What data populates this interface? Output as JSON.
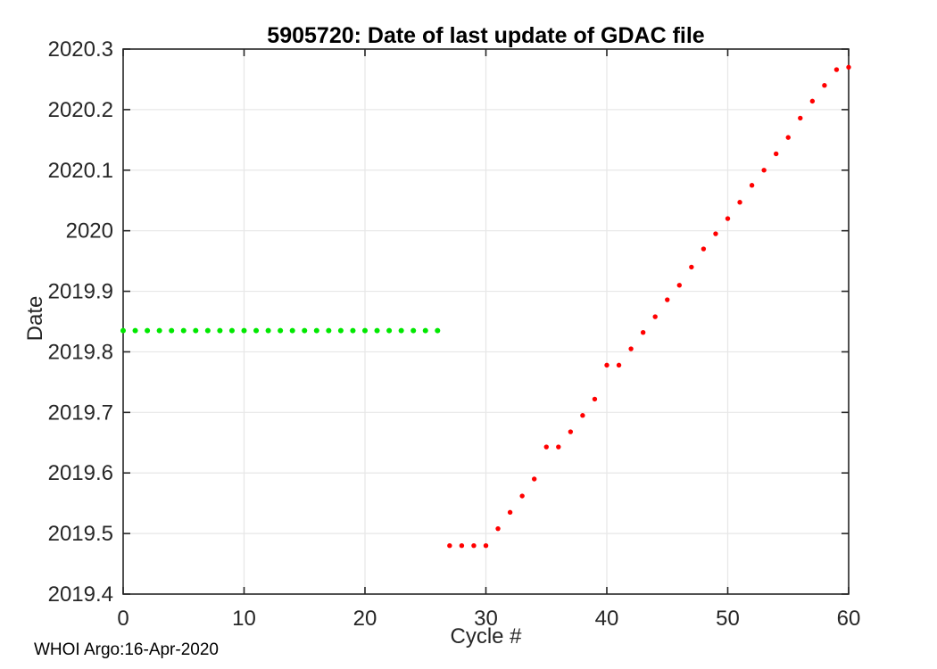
{
  "chart_data": {
    "type": "scatter",
    "title": "5905720: Date of last update of GDAC file",
    "xlabel": "Cycle #",
    "ylabel": "Date",
    "annotation": "WHOI Argo:16-Apr-2020",
    "xlim": [
      0,
      60
    ],
    "ylim": [
      2019.4,
      2020.3
    ],
    "grid": true,
    "legend": "none",
    "box": true,
    "tick_direction": "in",
    "xticks": [
      {
        "v": 0,
        "label": "0"
      },
      {
        "v": 10,
        "label": "10"
      },
      {
        "v": 20,
        "label": "20"
      },
      {
        "v": 30,
        "label": "30"
      },
      {
        "v": 40,
        "label": "40"
      },
      {
        "v": 50,
        "label": "50"
      },
      {
        "v": 60,
        "label": "60"
      }
    ],
    "yticks": [
      {
        "v": 2019.4,
        "label": "2019.4"
      },
      {
        "v": 2019.5,
        "label": "2019.5"
      },
      {
        "v": 2019.6,
        "label": "2019.6"
      },
      {
        "v": 2019.7,
        "label": "2019.7"
      },
      {
        "v": 2019.8,
        "label": "2019.8"
      },
      {
        "v": 2019.9,
        "label": "2019.9"
      },
      {
        "v": 2020.0,
        "label": "2020"
      },
      {
        "v": 2020.1,
        "label": "2020.1"
      },
      {
        "v": 2020.2,
        "label": "2020.2"
      },
      {
        "v": 2020.3,
        "label": "2020.3"
      }
    ],
    "series": [
      {
        "name": "green-dots",
        "color": "#00e800",
        "marker": "dot",
        "marker_size": 6,
        "points": [
          [
            0,
            2019.835
          ],
          [
            1,
            2019.835
          ],
          [
            2,
            2019.835
          ],
          [
            3,
            2019.835
          ],
          [
            4,
            2019.835
          ],
          [
            5,
            2019.835
          ],
          [
            6,
            2019.835
          ],
          [
            7,
            2019.835
          ],
          [
            8,
            2019.835
          ],
          [
            9,
            2019.835
          ],
          [
            10,
            2019.835
          ],
          [
            11,
            2019.835
          ],
          [
            12,
            2019.835
          ],
          [
            13,
            2019.835
          ],
          [
            14,
            2019.835
          ],
          [
            15,
            2019.835
          ],
          [
            16,
            2019.835
          ],
          [
            17,
            2019.835
          ],
          [
            18,
            2019.835
          ],
          [
            19,
            2019.835
          ],
          [
            20,
            2019.835
          ],
          [
            21,
            2019.835
          ],
          [
            22,
            2019.835
          ],
          [
            23,
            2019.835
          ],
          [
            24,
            2019.835
          ],
          [
            25,
            2019.835
          ],
          [
            26,
            2019.835
          ]
        ]
      },
      {
        "name": "red-dots",
        "color": "#ff0000",
        "marker": "dot",
        "marker_size": 5.4,
        "points": [
          [
            27,
            2019.48
          ],
          [
            28,
            2019.48
          ],
          [
            29,
            2019.48
          ],
          [
            30,
            2019.48
          ],
          [
            31,
            2019.508
          ],
          [
            32,
            2019.535
          ],
          [
            33,
            2019.562
          ],
          [
            34,
            2019.59
          ],
          [
            35,
            2019.643
          ],
          [
            36,
            2019.643
          ],
          [
            37,
            2019.668
          ],
          [
            38,
            2019.695
          ],
          [
            39,
            2019.722
          ],
          [
            40,
            2019.778
          ],
          [
            41,
            2019.778
          ],
          [
            42,
            2019.805
          ],
          [
            43,
            2019.832
          ],
          [
            44,
            2019.858
          ],
          [
            45,
            2019.886
          ],
          [
            46,
            2019.91
          ],
          [
            47,
            2019.94
          ],
          [
            48,
            2019.97
          ],
          [
            49,
            2019.995
          ],
          [
            50,
            2020.02
          ],
          [
            51,
            2020.047
          ],
          [
            52,
            2020.075
          ],
          [
            53,
            2020.1
          ],
          [
            54,
            2020.127
          ],
          [
            55,
            2020.154
          ],
          [
            56,
            2020.186
          ],
          [
            57,
            2020.214
          ],
          [
            58,
            2020.24
          ],
          [
            59,
            2020.266
          ],
          [
            60,
            2020.27
          ]
        ]
      }
    ],
    "colors": {
      "axis": "#262626",
      "grid": "#e7e7e7",
      "title": "#000000",
      "background": "#ffffff"
    }
  }
}
